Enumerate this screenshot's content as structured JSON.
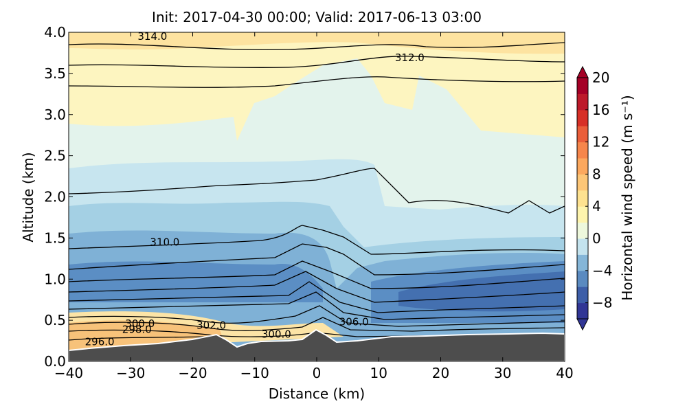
{
  "chart_data": {
    "type": "contour",
    "title": "Init: 2017-04-30 00:00; Valid: 2017-06-13 03:00",
    "x_label": "Distance (km)",
    "y_label": "Altitude (km)",
    "xlim": [
      -40,
      40
    ],
    "xticks": [
      {
        "value": -40,
        "label": "−40"
      },
      {
        "value": -30,
        "label": "−30"
      },
      {
        "value": -20,
        "label": "−20"
      },
      {
        "value": -10,
        "label": "−10"
      },
      0,
      10,
      20,
      30,
      40
    ],
    "ylim": [
      0,
      4
    ],
    "yticks": [
      {
        "value": 0,
        "label": "0.0"
      },
      {
        "value": 0.5,
        "label": "0.5"
      },
      {
        "value": 1,
        "label": "1.0"
      },
      {
        "value": 1.5,
        "label": "1.5"
      },
      {
        "value": 2,
        "label": "2.0"
      },
      {
        "value": 2.5,
        "label": "2.5"
      },
      {
        "value": 3,
        "label": "3.0"
      },
      {
        "value": 3.5,
        "label": "3.5"
      },
      {
        "value": 4,
        "label": "4.0"
      }
    ],
    "contour_labels": [
      {
        "text": "314.0",
        "x": -26.5,
        "y": 3.95
      },
      {
        "text": "312.0",
        "x": 15,
        "y": 3.69
      },
      {
        "text": "310.0",
        "x": -24.5,
        "y": 1.45
      },
      {
        "text": "306.0",
        "x": 6,
        "y": 0.48
      },
      {
        "text": "302.0",
        "x": -17,
        "y": 0.44
      },
      {
        "text": "300.0",
        "x": -28.5,
        "y": 0.46
      },
      {
        "text": "300.0",
        "x": -6.5,
        "y": 0.33
      },
      {
        "text": "298.0",
        "x": -29,
        "y": 0.39
      },
      {
        "text": "296.0",
        "x": -35,
        "y": 0.24
      }
    ],
    "colorbar": {
      "label": "Horizontal wind speed (m s⁻¹)",
      "lim": [
        -10,
        20
      ],
      "ticks": [
        {
          "value": -8,
          "label": "−8"
        },
        {
          "value": -4,
          "label": "−4"
        },
        0,
        4,
        8,
        12,
        16,
        20
      ],
      "colors": [
        "#313695",
        "#3d5ea8",
        "#5a8ac0",
        "#85b6d8",
        "#c4e3ee",
        "#eef8dc",
        "#fef4ad",
        "#fee290",
        "#fdc677",
        "#fca85e",
        "#f6864b",
        "#ea5e3a",
        "#d73027",
        "#bd1a2a",
        "#a50026"
      ]
    }
  }
}
